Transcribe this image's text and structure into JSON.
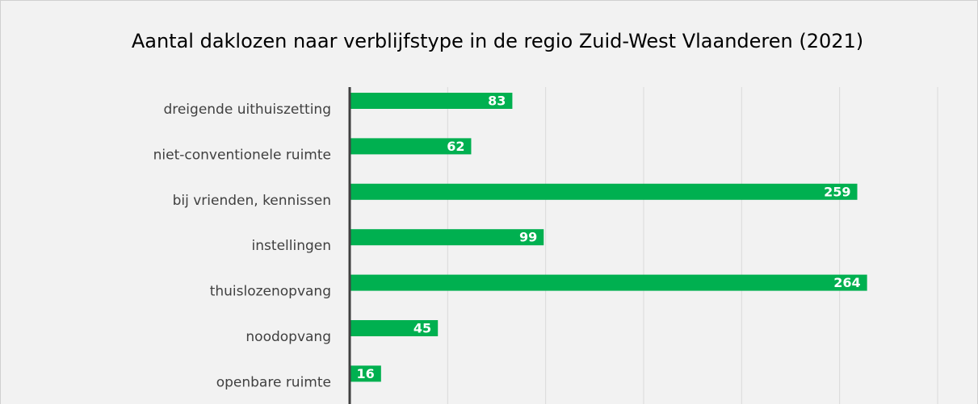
{
  "chart_data": {
    "type": "bar",
    "orientation": "horizontal",
    "title": "Aantal daklozen naar verblijfstype in de regio Zuid-West Vlaanderen (2021)",
    "categories": [
      "dreigende uithuiszetting",
      "niet-conventionele ruimte",
      "bij vrienden, kennissen",
      "instellingen",
      "thuislozenopvang",
      "noodopvang",
      "openbare ruimte"
    ],
    "values": [
      83,
      62,
      259,
      99,
      264,
      45,
      16
    ],
    "color": "#00b050",
    "xlim": [
      0,
      300
    ],
    "xticks": [
      0,
      50,
      100,
      150,
      200,
      250,
      300
    ],
    "grid": true
  }
}
